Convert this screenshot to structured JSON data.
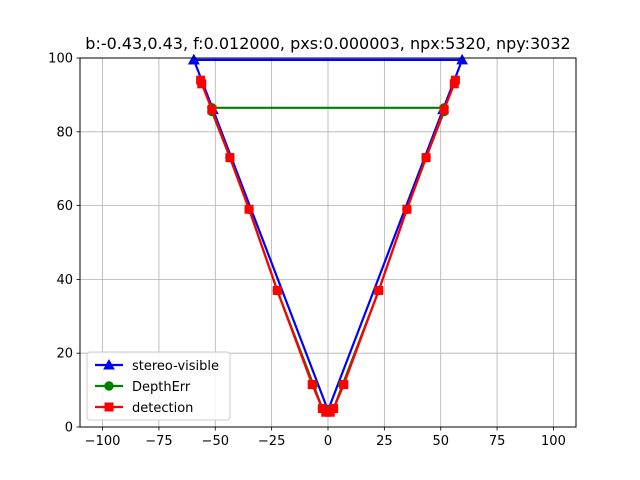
{
  "chart_data": {
    "type": "line",
    "title": "b:-0.43,0.43, f:0.012000, pxs:0.000003, npx:5320, npy:3032",
    "xlabel": "",
    "ylabel": "",
    "xlim": [
      -110,
      110
    ],
    "ylim": [
      0,
      100
    ],
    "x_ticks": [
      -100,
      -75,
      -50,
      -25,
      0,
      25,
      50,
      75,
      100
    ],
    "y_ticks": [
      0,
      20,
      40,
      60,
      80,
      100
    ],
    "grid": true,
    "legend_position": "lower-left",
    "series": [
      {
        "name": "stereo-visible",
        "color": "#0000ff",
        "marker": "triangle",
        "x": [
          -59.5,
          -51,
          0,
          51,
          59.5,
          -59.5
        ],
        "y": [
          99.5,
          86,
          4.5,
          86,
          99.5,
          99.5
        ]
      },
      {
        "name": "DepthErr",
        "color": "#008000",
        "marker": "circle",
        "x": [
          -51.5,
          -51.5,
          -43.5,
          -35,
          -22.5,
          -6.5,
          -2.5,
          0,
          2.5,
          6.5,
          22.5,
          35,
          43.5,
          51.5,
          51.5,
          -51.5
        ],
        "y": [
          86.5,
          85.5,
          73,
          59,
          37,
          11.5,
          5,
          4.5,
          5,
          11.5,
          37,
          59,
          73,
          85.5,
          86.5,
          86.5
        ]
      },
      {
        "name": "detection",
        "color": "#ff0000",
        "marker": "square",
        "x": [
          -56.5,
          -56,
          -51.5,
          -43.5,
          -35,
          -22.5,
          -7,
          -2.5,
          -1,
          1,
          2.5,
          7,
          22.5,
          35,
          43.5,
          51.5,
          56,
          56.5
        ],
        "y": [
          94,
          93,
          86,
          73,
          59,
          37,
          11.5,
          5,
          4,
          4,
          5,
          11.5,
          37,
          59,
          73,
          86,
          93,
          94
        ]
      }
    ]
  }
}
